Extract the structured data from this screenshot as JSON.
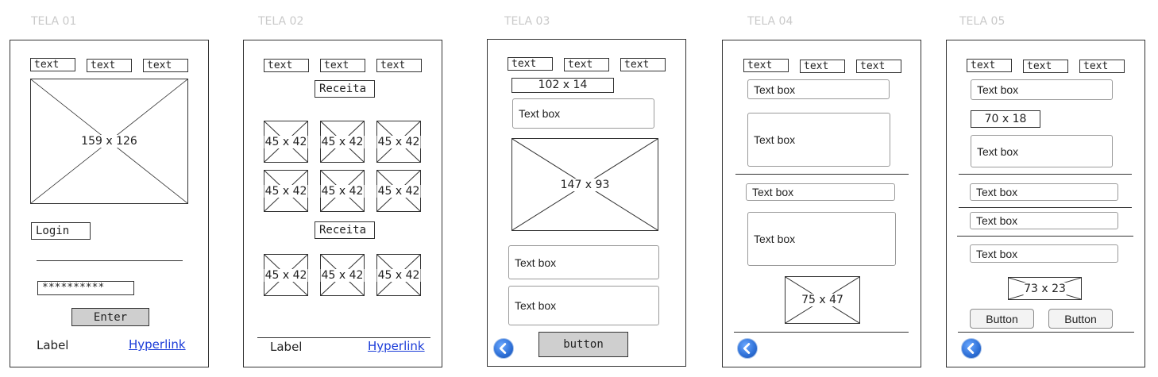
{
  "screens": [
    {
      "title": "TELA 01",
      "tabs": [
        "text",
        "text",
        "text"
      ],
      "image_size": "159 x 126",
      "login_label": "Login",
      "password_value": "**********",
      "enter_button": "Enter",
      "footer_label": "Label",
      "footer_link": "Hyperlink"
    },
    {
      "title": "TELA 02",
      "tabs": [
        "text",
        "text",
        "text"
      ],
      "section1_label": "Receita",
      "section2_label": "Receita",
      "thumb_size": "45 x 42",
      "footer_label": "Label",
      "footer_link": "Hyperlink"
    },
    {
      "title": "TELA 03",
      "tabs": [
        "text",
        "text",
        "text"
      ],
      "size_label": "102 x 14",
      "textbox1": "Text box",
      "image_size": "147 x 93",
      "textbox2": "Text box",
      "textbox3": "Text box",
      "button": "button"
    },
    {
      "title": "TELA 04",
      "tabs": [
        "text",
        "text",
        "text"
      ],
      "textbox1": "Text box",
      "textbox2": "Text box",
      "textbox3": "Text box",
      "textbox4": "Text box",
      "image_size": "75 x 47"
    },
    {
      "title": "TELA 05",
      "tabs": [
        "text",
        "text",
        "text"
      ],
      "textbox1": "Text box",
      "size_label": "70 x 18",
      "textbox2": "Text box",
      "textbox3": "Text box",
      "textbox4": "Text box",
      "textbox5": "Text box",
      "image_size": "73 x 23",
      "button1": "Button",
      "button2": "Button"
    }
  ],
  "icons": {
    "back": "back-arrow-icon"
  },
  "colors": {
    "title_gray": "#c9c9c9",
    "link_blue": "#1a3bd8",
    "button_gray": "#cfcfcf",
    "back_blue": "#2d6fd6"
  }
}
